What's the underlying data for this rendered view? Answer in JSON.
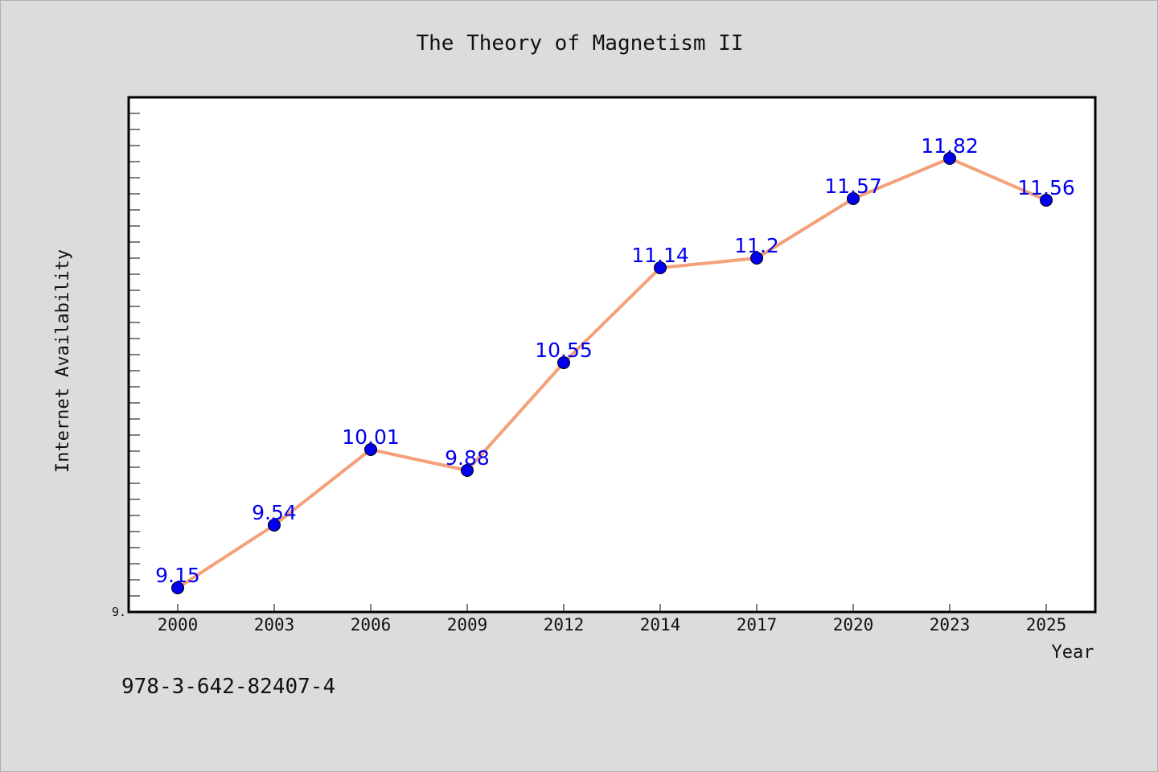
{
  "chart_data": {
    "type": "line",
    "title": "The Theory of Magnetism II",
    "xlabel": "Year",
    "ylabel": "Internet Availability",
    "categories": [
      "2000",
      "2003",
      "2006",
      "2009",
      "2012",
      "2014",
      "2017",
      "2020",
      "2023",
      "2025"
    ],
    "series": [
      {
        "values": [
          9.15,
          9.54,
          10.01,
          9.88,
          10.55,
          11.14,
          11.2,
          11.57,
          11.82,
          11.56
        ],
        "data_labels": [
          "9.15",
          "9.54",
          "10.01",
          "9.88",
          "10.55",
          "11.14",
          "11.2",
          "11.57",
          "11.82",
          "11.56"
        ]
      }
    ],
    "ylim": [
      9.0,
      12.2
    ],
    "y_tick_labels": [
      "9."
    ],
    "grid": false,
    "colors": {
      "line": "#f4a07a",
      "marker": "#0000ee",
      "label": "#0000ee",
      "background": "#dcdcdc",
      "plot_background": "#ffffff"
    }
  },
  "footer_text": "978-3-642-82407-4"
}
